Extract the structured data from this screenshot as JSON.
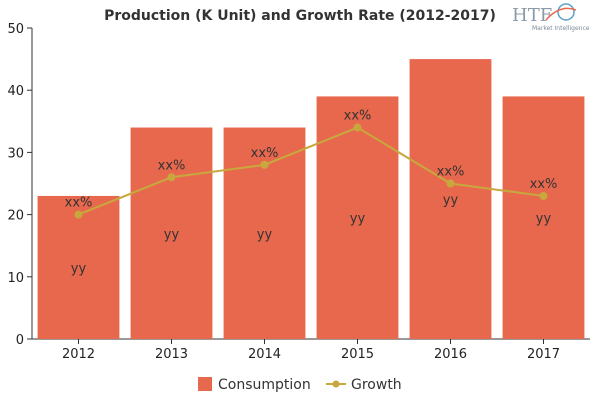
{
  "chart_data": {
    "type": "bar",
    "title": "Production (K Unit) and Growth Rate (2012-2017)",
    "categories": [
      "2012",
      "2013",
      "2014",
      "2015",
      "2016",
      "2017"
    ],
    "ylim": [
      0,
      50
    ],
    "yticks": [
      0,
      10,
      20,
      30,
      40,
      50
    ],
    "grid": false,
    "legend_position": "bottom",
    "series": [
      {
        "name": "Consumption",
        "type": "bar",
        "color": "#e8684e",
        "values": [
          23,
          34,
          34,
          39,
          45,
          39
        ],
        "labels": [
          "yy",
          "yy",
          "yy",
          "yy",
          "yy",
          "yy"
        ]
      },
      {
        "name": "Growth",
        "type": "line",
        "color": "#c8a83c",
        "values": [
          20,
          26,
          28,
          34,
          25,
          23
        ],
        "labels": [
          "xx%",
          "xx%",
          "xx%",
          "xx%",
          "xx%",
          "xx%"
        ]
      }
    ]
  },
  "logo": {
    "text": "HTF",
    "subtext": "Market Intelligence"
  }
}
